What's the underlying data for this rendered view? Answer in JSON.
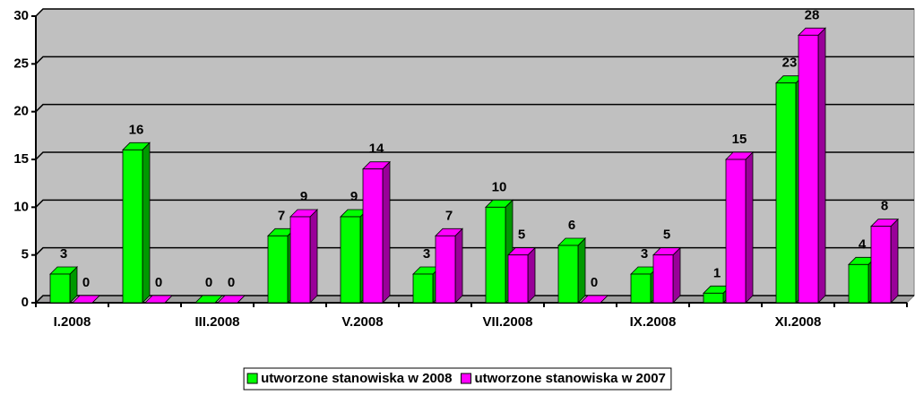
{
  "chart_data": {
    "type": "bar",
    "categories": [
      "I.2008",
      null,
      "III.2008",
      null,
      "V.2008",
      null,
      "VII.2008",
      null,
      "IX.2008",
      null,
      "XI.2008",
      null
    ],
    "series": [
      {
        "name": "utworzone stanowiska w 2008",
        "color": "#00ff00",
        "values": [
          3,
          16,
          0,
          7,
          9,
          3,
          10,
          6,
          3,
          1,
          23,
          4
        ]
      },
      {
        "name": "utworzone stanowiska w 2007",
        "color": "#ff00ff",
        "values": [
          0,
          0,
          0,
          9,
          14,
          7,
          5,
          0,
          5,
          15,
          28,
          8
        ]
      }
    ],
    "ylim": [
      0,
      30
    ],
    "yticks": [
      0,
      5,
      10,
      15,
      20,
      25,
      30
    ],
    "grid": true,
    "legend": "bottom"
  }
}
